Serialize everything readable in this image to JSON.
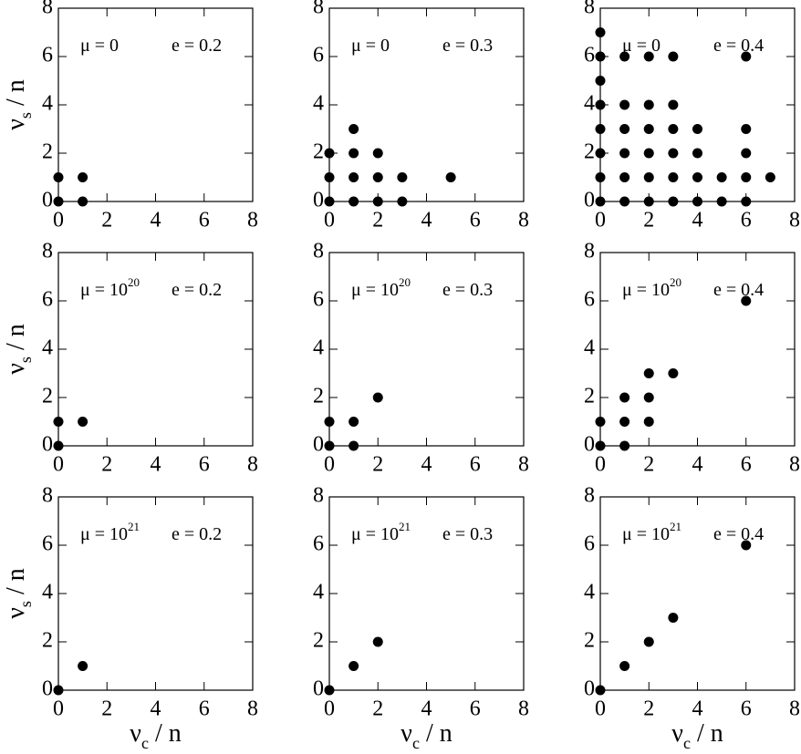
{
  "chart_data": [
    {
      "type": "scatter",
      "color": "#000000",
      "ylabel": [
        "ν",
        "s",
        " / n"
      ],
      "mu_label": [
        "μ = 0"
      ],
      "e_label": "e = 0.2",
      "x": [
        0,
        0,
        1,
        1
      ],
      "y": [
        0,
        1,
        0,
        1
      ],
      "xlim": [
        0,
        8
      ],
      "ylim": [
        0,
        8
      ],
      "xticks": [
        0,
        2,
        4,
        6,
        8
      ],
      "yticks": [
        0,
        2,
        4,
        6,
        8
      ]
    },
    {
      "type": "scatter",
      "color": "#000000",
      "mu_label": [
        "μ = 0"
      ],
      "e_label": "e = 0.3",
      "x": [
        0,
        0,
        0,
        1,
        1,
        1,
        1,
        2,
        2,
        2,
        3,
        3,
        5
      ],
      "y": [
        0,
        1,
        2,
        0,
        1,
        2,
        3,
        0,
        1,
        2,
        0,
        1,
        1
      ],
      "xlim": [
        0,
        8
      ],
      "ylim": [
        0,
        8
      ],
      "xticks": [
        0,
        2,
        4,
        6,
        8
      ],
      "yticks": [
        0,
        2,
        4,
        6,
        8
      ]
    },
    {
      "type": "scatter",
      "color": "#000000",
      "mu_label": [
        "μ = 0"
      ],
      "e_label": "e = 0.4",
      "x": [
        0,
        0,
        0,
        0,
        0,
        0,
        0,
        0,
        1,
        1,
        1,
        1,
        1,
        1,
        2,
        2,
        2,
        2,
        2,
        2,
        3,
        3,
        3,
        3,
        3,
        3,
        4,
        4,
        4,
        4,
        5,
        5,
        6,
        6,
        6,
        6,
        6,
        7
      ],
      "y": [
        0,
        1,
        2,
        3,
        4,
        5,
        6,
        7,
        0,
        1,
        2,
        3,
        4,
        6,
        0,
        1,
        2,
        3,
        4,
        6,
        0,
        1,
        2,
        3,
        4,
        6,
        0,
        1,
        2,
        3,
        0,
        1,
        0,
        1,
        2,
        3,
        6,
        1
      ],
      "xlim": [
        0,
        8
      ],
      "ylim": [
        0,
        8
      ],
      "xticks": [
        0,
        2,
        4,
        6,
        8
      ],
      "yticks": [
        0,
        2,
        4,
        6,
        8
      ]
    },
    {
      "type": "scatter",
      "color": "#000000",
      "ylabel": [
        "ν",
        "s",
        " / n"
      ],
      "mu_label": [
        "μ = 10",
        "20"
      ],
      "e_label": "e = 0.2",
      "x": [
        0,
        0,
        1
      ],
      "y": [
        0,
        1,
        1
      ],
      "xlim": [
        0,
        8
      ],
      "ylim": [
        0,
        8
      ],
      "xticks": [
        0,
        2,
        4,
        6,
        8
      ],
      "yticks": [
        0,
        2,
        4,
        6,
        8
      ]
    },
    {
      "type": "scatter",
      "color": "#000000",
      "mu_label": [
        "μ = 10",
        "20"
      ],
      "e_label": "e = 0.3",
      "x": [
        0,
        0,
        1,
        1,
        2
      ],
      "y": [
        0,
        1,
        0,
        1,
        2
      ],
      "xlim": [
        0,
        8
      ],
      "ylim": [
        0,
        8
      ],
      "xticks": [
        0,
        2,
        4,
        6,
        8
      ],
      "yticks": [
        0,
        2,
        4,
        6,
        8
      ]
    },
    {
      "type": "scatter",
      "color": "#000000",
      "mu_label": [
        "μ = 10",
        "20"
      ],
      "e_label": "e = 0.4",
      "x": [
        0,
        0,
        1,
        1,
        1,
        2,
        2,
        2,
        3,
        6
      ],
      "y": [
        0,
        1,
        0,
        1,
        2,
        1,
        2,
        3,
        3,
        6
      ],
      "xlim": [
        0,
        8
      ],
      "ylim": [
        0,
        8
      ],
      "xticks": [
        0,
        2,
        4,
        6,
        8
      ],
      "yticks": [
        0,
        2,
        4,
        6,
        8
      ]
    },
    {
      "type": "scatter",
      "color": "#000000",
      "ylabel": [
        "ν",
        "s",
        " / n"
      ],
      "xlabel": [
        "ν",
        "c",
        " / n"
      ],
      "mu_label": [
        "μ = 10",
        "21"
      ],
      "e_label": "e = 0.2",
      "x": [
        0,
        1
      ],
      "y": [
        0,
        1
      ],
      "xlim": [
        0,
        8
      ],
      "ylim": [
        0,
        8
      ],
      "xticks": [
        0,
        2,
        4,
        6,
        8
      ],
      "yticks": [
        0,
        2,
        4,
        6,
        8
      ]
    },
    {
      "type": "scatter",
      "color": "#000000",
      "xlabel": [
        "ν",
        "c",
        " / n"
      ],
      "mu_label": [
        "μ = 10",
        "21"
      ],
      "e_label": "e = 0.3",
      "x": [
        0,
        1,
        2
      ],
      "y": [
        0,
        1,
        2
      ],
      "xlim": [
        0,
        8
      ],
      "ylim": [
        0,
        8
      ],
      "xticks": [
        0,
        2,
        4,
        6,
        8
      ],
      "yticks": [
        0,
        2,
        4,
        6,
        8
      ]
    },
    {
      "type": "scatter",
      "color": "#000000",
      "xlabel": [
        "ν",
        "c",
        " / n"
      ],
      "mu_label": [
        "μ = 10",
        "21"
      ],
      "e_label": "e = 0.4",
      "x": [
        0,
        1,
        2,
        3,
        6
      ],
      "y": [
        0,
        1,
        2,
        3,
        6
      ],
      "xlim": [
        0,
        8
      ],
      "ylim": [
        0,
        8
      ],
      "xticks": [
        0,
        2,
        4,
        6,
        8
      ],
      "yticks": [
        0,
        2,
        4,
        6,
        8
      ]
    }
  ]
}
